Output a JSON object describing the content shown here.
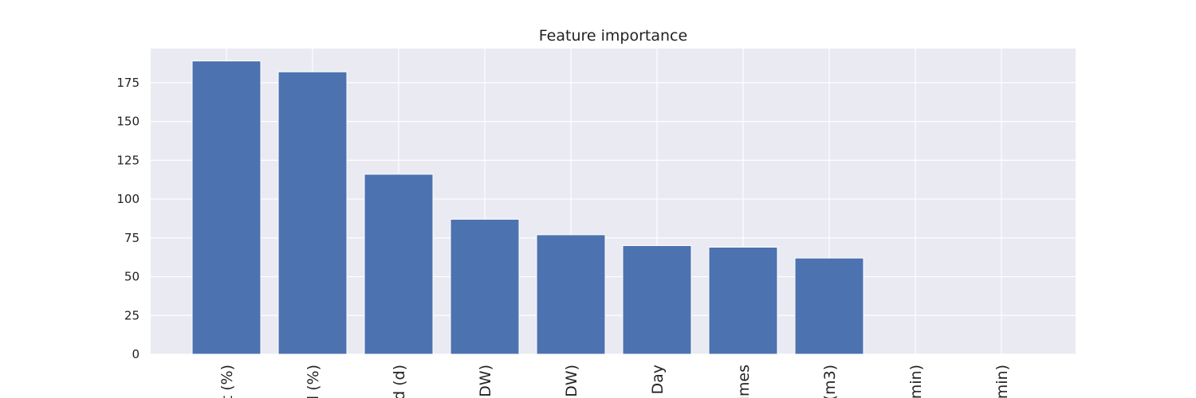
{
  "chart_data": {
    "type": "bar",
    "title": "Feature importance",
    "xlabel": "",
    "ylabel": "",
    "categories": [
      "t (%)",
      "d (%)",
      "d (d)",
      "DW)",
      "DW)",
      "Day",
      "imes",
      "(m3)",
      "min)",
      "min)"
    ],
    "values": [
      189,
      182,
      116,
      87,
      77,
      70,
      69,
      62,
      0,
      0
    ],
    "ylim": [
      0,
      197
    ],
    "yticks": [
      0,
      25,
      50,
      75,
      100,
      125,
      150,
      175
    ],
    "grid": true,
    "colors": {
      "bar": "#4c72b0",
      "background": "#eaeaf2",
      "grid": "#ffffff"
    }
  }
}
